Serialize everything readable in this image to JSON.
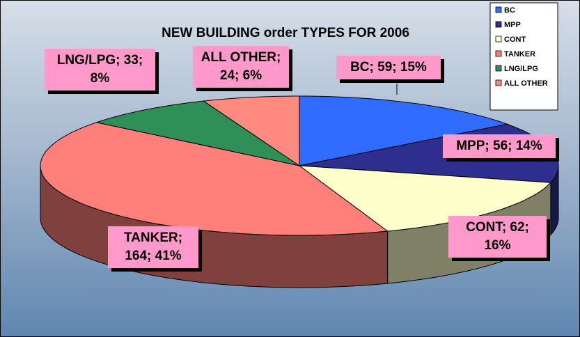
{
  "chart_data": {
    "type": "pie3d",
    "title": "NEW BUILDING order TYPES FOR 2006",
    "categories": [
      "BC",
      "MPP",
      "CONT",
      "TANKER",
      "LNG/LPG",
      "ALL OTHER"
    ],
    "values": [
      59,
      56,
      62,
      164,
      33,
      24
    ],
    "value_labels": [
      "BC; 59; 15%",
      "MPP; 56; 14%",
      "CONT; 62; 16%",
      "TANKER; 164; 41%",
      "LNG/LPG; 33; 8%",
      "ALL OTHER; 24; 6%"
    ],
    "colors": [
      "#2f6cff",
      "#2e2e8f",
      "#ffffcc",
      "#ff7f7a",
      "#2e8f57",
      "#ff8a80"
    ],
    "legend": "top-right"
  }
}
